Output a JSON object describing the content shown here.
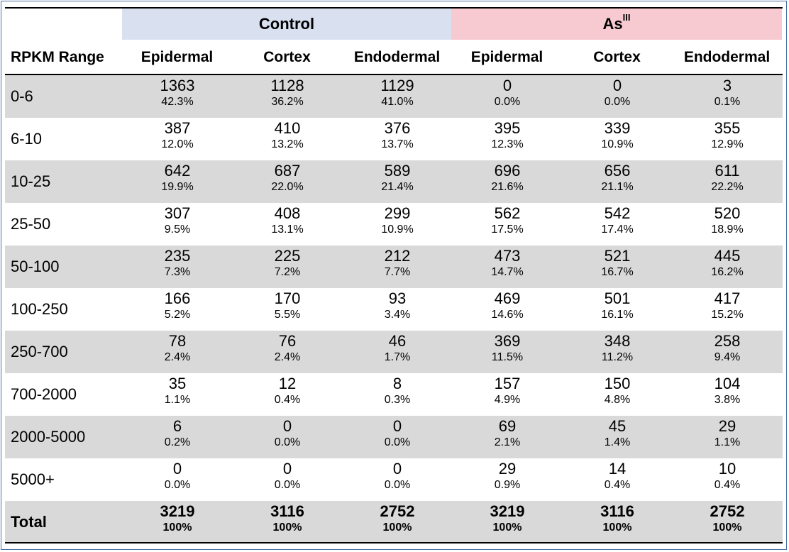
{
  "groups": {
    "control": "Control",
    "treatment": "As",
    "treatment_sup": "III"
  },
  "headers": [
    "RPKM Range",
    "Epidermal",
    "Cortex",
    "Endodermal",
    "Epidermal",
    "Cortex",
    "Endodermal"
  ],
  "rows": [
    {
      "label": "0-6",
      "cells": [
        [
          "1363",
          "42.3%"
        ],
        [
          "1128",
          "36.2%"
        ],
        [
          "1129",
          "41.0%"
        ],
        [
          "0",
          "0.0%"
        ],
        [
          "0",
          "0.0%"
        ],
        [
          "3",
          "0.1%"
        ]
      ]
    },
    {
      "label": "6-10",
      "cells": [
        [
          "387",
          "12.0%"
        ],
        [
          "410",
          "13.2%"
        ],
        [
          "376",
          "13.7%"
        ],
        [
          "395",
          "12.3%"
        ],
        [
          "339",
          "10.9%"
        ],
        [
          "355",
          "12.9%"
        ]
      ]
    },
    {
      "label": "10-25",
      "cells": [
        [
          "642",
          "19.9%"
        ],
        [
          "687",
          "22.0%"
        ],
        [
          "589",
          "21.4%"
        ],
        [
          "696",
          "21.6%"
        ],
        [
          "656",
          "21.1%"
        ],
        [
          "611",
          "22.2%"
        ]
      ]
    },
    {
      "label": "25-50",
      "cells": [
        [
          "307",
          "9.5%"
        ],
        [
          "408",
          "13.1%"
        ],
        [
          "299",
          "10.9%"
        ],
        [
          "562",
          "17.5%"
        ],
        [
          "542",
          "17.4%"
        ],
        [
          "520",
          "18.9%"
        ]
      ]
    },
    {
      "label": "50-100",
      "cells": [
        [
          "235",
          "7.3%"
        ],
        [
          "225",
          "7.2%"
        ],
        [
          "212",
          "7.7%"
        ],
        [
          "473",
          "14.7%"
        ],
        [
          "521",
          "16.7%"
        ],
        [
          "445",
          "16.2%"
        ]
      ]
    },
    {
      "label": "100-250",
      "cells": [
        [
          "166",
          "5.2%"
        ],
        [
          "170",
          "5.5%"
        ],
        [
          "93",
          "3.4%"
        ],
        [
          "469",
          "14.6%"
        ],
        [
          "501",
          "16.1%"
        ],
        [
          "417",
          "15.2%"
        ]
      ]
    },
    {
      "label": "250-700",
      "cells": [
        [
          "78",
          "2.4%"
        ],
        [
          "76",
          "2.4%"
        ],
        [
          "46",
          "1.7%"
        ],
        [
          "369",
          "11.5%"
        ],
        [
          "348",
          "11.2%"
        ],
        [
          "258",
          "9.4%"
        ]
      ]
    },
    {
      "label": "700-2000",
      "cells": [
        [
          "35",
          "1.1%"
        ],
        [
          "12",
          "0.4%"
        ],
        [
          "8",
          "0.3%"
        ],
        [
          "157",
          "4.9%"
        ],
        [
          "150",
          "4.8%"
        ],
        [
          "104",
          "3.8%"
        ]
      ]
    },
    {
      "label": "2000-5000",
      "cells": [
        [
          "6",
          "0.2%"
        ],
        [
          "0",
          "0.0%"
        ],
        [
          "0",
          "0.0%"
        ],
        [
          "69",
          "2.1%"
        ],
        [
          "45",
          "1.4%"
        ],
        [
          "29",
          "1.1%"
        ]
      ]
    },
    {
      "label": "5000+",
      "cells": [
        [
          "0",
          "0.0%"
        ],
        [
          "0",
          "0.0%"
        ],
        [
          "0",
          "0.0%"
        ],
        [
          "29",
          "0.9%"
        ],
        [
          "14",
          "0.4%"
        ],
        [
          "10",
          "0.4%"
        ]
      ]
    },
    {
      "label": "Total",
      "cells": [
        [
          "3219",
          "100%"
        ],
        [
          "3116",
          "100%"
        ],
        [
          "2752",
          "100%"
        ],
        [
          "3219",
          "100%"
        ],
        [
          "3116",
          "100%"
        ],
        [
          "2752",
          "100%"
        ]
      ]
    }
  ],
  "colors": {
    "control_header": "#d9e1f0",
    "treatment_header": "#f7c9d0",
    "row_shade": "#d9d9d9",
    "frame_border": "#4a6fa5"
  }
}
